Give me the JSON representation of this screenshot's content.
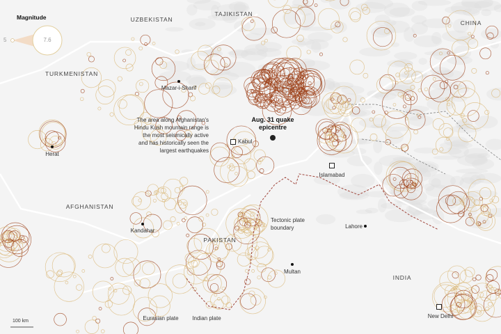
{
  "legend": {
    "title": "Magnitude",
    "min_label": "5",
    "max_label": "7.6"
  },
  "countries": [
    "UZBEKISTAN",
    "TAJIKISTAN",
    "CHINA",
    "TURKMENISTAN",
    "AFGHANISTAN",
    "PAKISTAN",
    "INDIA"
  ],
  "cities": {
    "mazar": "Mazar-i-Sharif",
    "herat": "Herat",
    "kabul": "Kabul",
    "kandahar": "Kandahar",
    "islamabad": "Islamabad",
    "lahore": "Lahore",
    "multan": "Multan",
    "new_delhi": "New Delhi"
  },
  "epicentre_label": "Aug. 31 quake epicentre",
  "annotation": "The area along Afghanistan's Hindu Kush mountain range is the most seismically active and has historically seen the largest earthquakes",
  "plate_boundary_label": "Tectonic plate boundary",
  "plates": [
    "Eurasian plate",
    "Indian plate"
  ],
  "scale_label": "100 km",
  "colors": {
    "background": "#f4f4f4",
    "border": "#ffffff",
    "quake_light": "#e2c38a",
    "quake_dark": "#8a2a0a",
    "plate_boundary": "#a0463c"
  }
}
